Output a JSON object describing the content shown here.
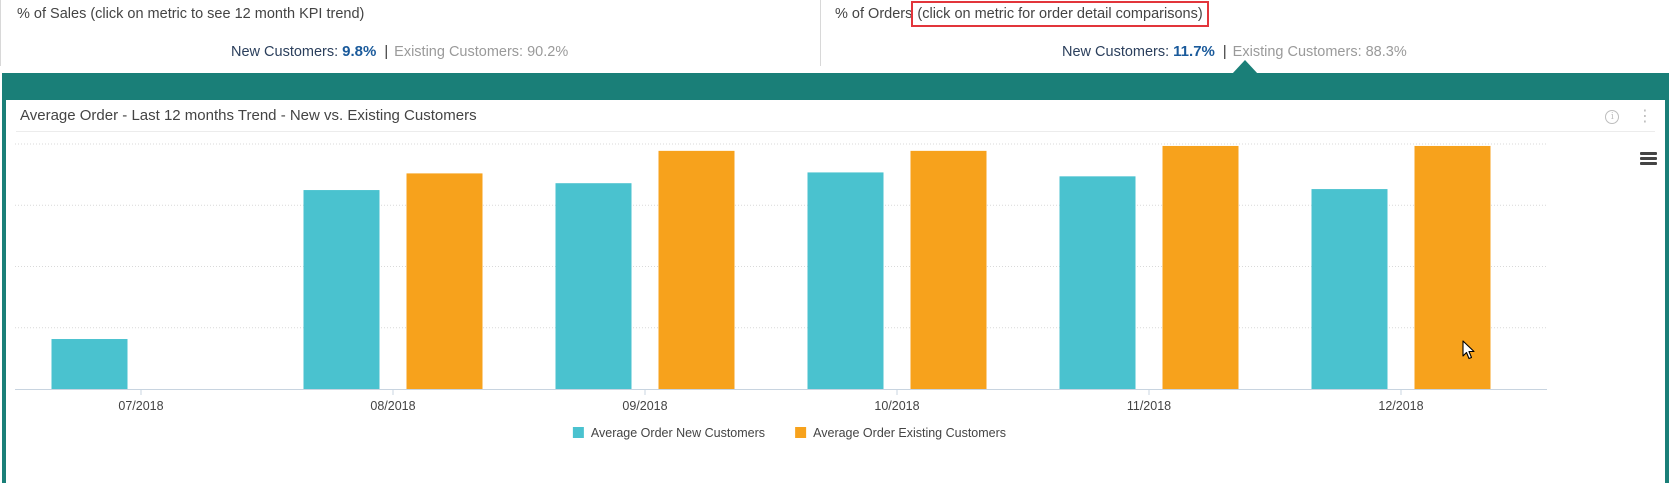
{
  "kpi_sales": {
    "title_main": "% of Sales ",
    "title_hint": "(click on metric to see 12 month KPI trend)",
    "new_label": "New Customers:",
    "new_value": "9.8%",
    "separator": "|",
    "existing_label": "Existing Customers:",
    "existing_value": "90.2%"
  },
  "kpi_orders": {
    "title_main": "% of Orders ",
    "title_hint": "(click on metric for order detail comparisons)",
    "new_label": "New Customers:",
    "new_value": "11.7%",
    "separator": "|",
    "existing_label": "Existing Customers:",
    "existing_value": "88.3%"
  },
  "card": {
    "title": "Average Order - Last 12 months Trend - New vs. Existing Customers",
    "info_icon": "info-icon",
    "kebab_icon": "vertical-ellipsis-icon",
    "menu_icon": "hamburger-menu-icon"
  },
  "colors": {
    "teal_frame": "#1a7f78",
    "new_customers": "#4ac2cf",
    "existing_customers": "#f7a21c",
    "value_blue": "#1a5a9b",
    "highlight_red": "#e2353b"
  },
  "chart_data": {
    "type": "bar",
    "categories": [
      "07/2018",
      "08/2018",
      "09/2018",
      "10/2018",
      "11/2018",
      "12/2018"
    ],
    "series": [
      {
        "name": "Average Order New Customers",
        "color": "#4ac2cf",
        "values": [
          51,
          203,
          210,
          221,
          217,
          204
        ]
      },
      {
        "name": "Average Order Existing Customers",
        "color": "#f7a21c",
        "values": [
          0,
          220,
          243,
          243,
          248,
          248
        ]
      }
    ],
    "ylim": [
      0,
      250
    ],
    "gridlines": 4,
    "y_axis_labels_shown": false,
    "legend_position": "bottom-center",
    "grid": true
  }
}
